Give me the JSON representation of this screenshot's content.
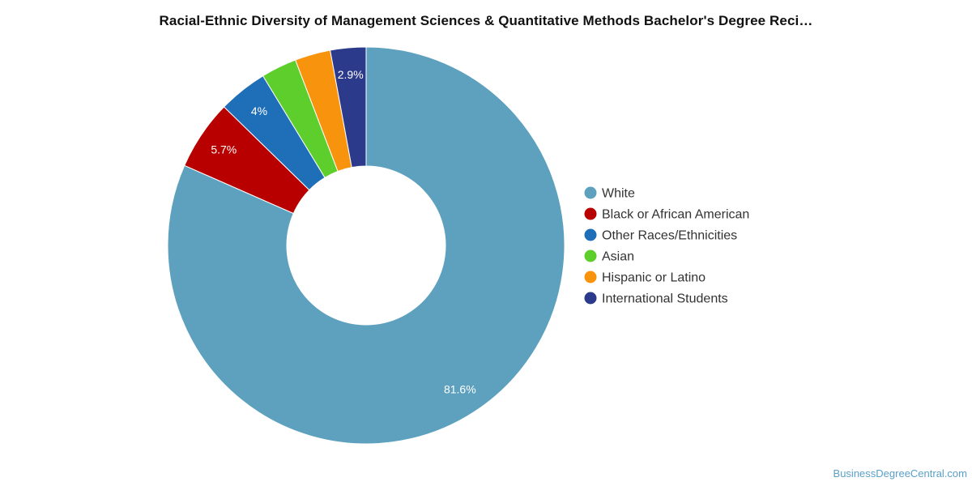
{
  "chart_data": {
    "type": "pie",
    "title": "Racial-Ethnic Diversity of Management Sciences & Quantitative Methods Bachelor's Degree Reci…",
    "donut": true,
    "legend_position": "right",
    "slices": [
      {
        "label": "White",
        "value": 81.6,
        "value_label": "81.6%",
        "color": "#5ea1bf"
      },
      {
        "label": "Black or African American",
        "value": 5.7,
        "value_label": "5.7%",
        "color": "#b80000"
      },
      {
        "label": "Other Races/Ethnicities",
        "value": 4.0,
        "value_label": "4%",
        "color": "#1f6fb8"
      },
      {
        "label": "Asian",
        "value": 2.9,
        "value_label": "",
        "color": "#5dce2b"
      },
      {
        "label": "Hispanic or Latino",
        "value": 2.9,
        "value_label": "",
        "color": "#f7930c"
      },
      {
        "label": "International Students",
        "value": 2.9,
        "value_label": "2.9%",
        "color": "#2c3a8c"
      }
    ]
  },
  "credit": "BusinessDegreeCentral.com"
}
